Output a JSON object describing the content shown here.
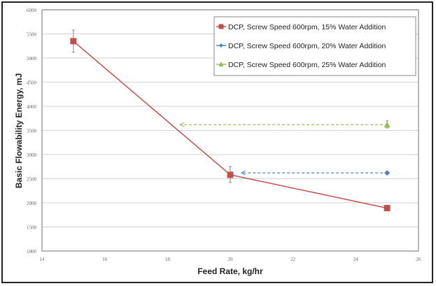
{
  "chart_data": {
    "type": "line",
    "xlabel": "Feed Rate, kg/hr",
    "ylabel": "Basic Flowability Energy, mJ",
    "xlim": [
      14,
      26
    ],
    "ylim": [
      1000,
      6000
    ],
    "xticks": [
      14,
      16,
      18,
      20,
      22,
      24,
      26
    ],
    "yticks": [
      1000,
      1500,
      2000,
      2500,
      3000,
      3500,
      4000,
      4500,
      5000,
      5500,
      6000
    ],
    "grid": "horizontal",
    "legend_position": "top-right",
    "series": [
      {
        "name": "DCP, Screw Speed 600rpm, 15% Water Addition",
        "color": "#c0504d",
        "marker": "square",
        "x": [
          15,
          20,
          25
        ],
        "y": [
          5350,
          2580,
          1890
        ],
        "error_low": [
          5120,
          2420,
          null
        ],
        "error_high": [
          5580,
          2750,
          null
        ]
      },
      {
        "name": "DCP, Screw Speed 600rpm, 20% Water Addition",
        "color": "#4f81bd",
        "marker": "diamond",
        "x": [
          25
        ],
        "y": [
          2620
        ],
        "error_low": [
          null
        ],
        "error_high": [
          null
        ]
      },
      {
        "name": "DCP, Screw Speed 600rpm, 25% Water Addition",
        "color": "#9bbb59",
        "marker": "triangle",
        "x": [
          25
        ],
        "y": [
          3620
        ],
        "error_low": [
          3550
        ],
        "error_high": [
          3700
        ]
      }
    ],
    "annotations": [
      {
        "type": "dashed-arrow",
        "color": "#9bbb59",
        "from": [
          25,
          3620
        ],
        "to": [
          18.4,
          3620
        ]
      },
      {
        "type": "dashed-arrow",
        "color": "#4f81bd",
        "from": [
          25,
          2620
        ],
        "to": [
          20.35,
          2620
        ]
      }
    ]
  }
}
